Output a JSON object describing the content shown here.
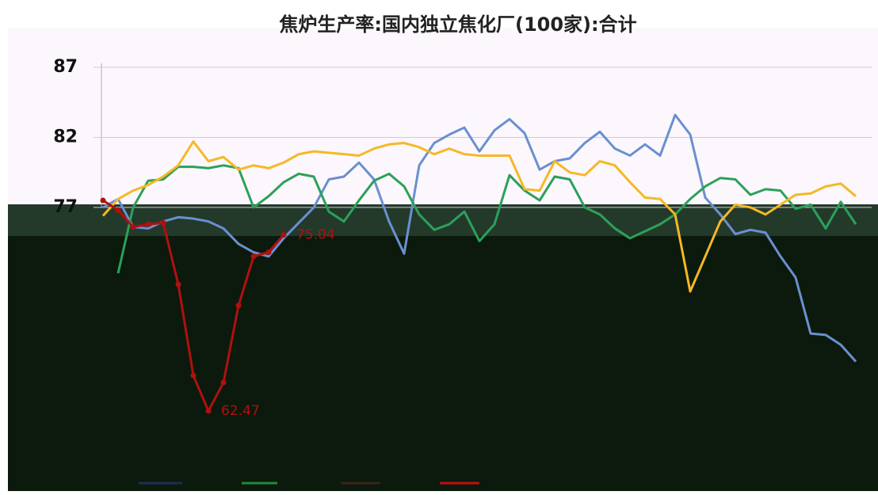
{
  "chart_data": {
    "type": "line",
    "title": "焦炉生产率:国内独立焦化厂(100家):合计",
    "ylim": [
      58,
      87
    ],
    "yticks": [
      87,
      82,
      77
    ],
    "grid": true,
    "series": [
      {
        "color": "#6b8fd0",
        "values": [
          77,
          77.6,
          75.6,
          75.5,
          76,
          76.3,
          76.2,
          76,
          75.5,
          74.4,
          73.8,
          73.5,
          74.8,
          75.9,
          77,
          79,
          79.2,
          80.2,
          79,
          76,
          73.7,
          80,
          81.6,
          82.2,
          82.7,
          81,
          82.5,
          83.3,
          82.3,
          79.7,
          80.3,
          80.5,
          81.6,
          82.4,
          81.2,
          80.7,
          81.5,
          80.7,
          83.6,
          82.2,
          77.7,
          76.5,
          75.1,
          75.4,
          75.2,
          73.5,
          72,
          68,
          67.9,
          67.2,
          66
        ]
      },
      {
        "color": "#2ca05a",
        "values": [
          null,
          72.3,
          77,
          78.9,
          79,
          79.9,
          79.9,
          79.8,
          80,
          79.8,
          77,
          77.8,
          78.8,
          79.4,
          79.2,
          76.7,
          76,
          77.5,
          78.9,
          79.4,
          78.5,
          76.5,
          75.4,
          75.8,
          76.7,
          74.6,
          75.8,
          79.3,
          78.2,
          77.5,
          79.2,
          79,
          77,
          76.5,
          75.5,
          74.8,
          75.3,
          75.8,
          76.5,
          77.6,
          78.5,
          79.1,
          79,
          77.9,
          78.3,
          78.2,
          76.9,
          77.2,
          75.5,
          77.4,
          75.8
        ]
      },
      {
        "color": "#f5b826",
        "values": [
          76.4,
          77.6,
          78.2,
          78.6,
          79.2,
          80,
          81.7,
          80.3,
          80.6,
          79.7,
          80,
          79.8,
          80.2,
          80.8,
          81,
          80.9,
          80.8,
          80.7,
          81.2,
          81.5,
          81.6,
          81.3,
          80.8,
          81.2,
          80.8,
          80.7,
          80.7,
          80.7,
          78.3,
          78.2,
          80.3,
          79.5,
          79.3,
          80.3,
          80,
          78.8,
          77.7,
          77.6,
          76.5,
          71,
          73.5,
          76,
          77.2,
          77,
          76.5,
          77.2,
          77.9,
          78,
          78.5,
          78.7,
          77.8
        ]
      },
      {
        "color": "#b01010",
        "markers": true,
        "values": [
          77.5,
          76.8,
          75.6,
          75.8,
          75.9,
          71.5,
          65,
          62.47,
          64.5,
          70,
          73.5,
          73.8,
          75.04,
          null,
          null,
          null,
          null,
          null,
          null,
          null,
          null,
          null,
          null,
          null,
          null,
          null,
          null,
          null,
          null,
          null,
          null,
          null,
          null,
          null,
          null,
          null,
          null,
          null,
          null,
          null,
          null,
          null,
          null,
          null,
          null,
          null,
          null,
          null,
          null,
          null,
          null
        ]
      }
    ],
    "data_labels": [
      {
        "series": 3,
        "index": 12
      },
      {
        "series": 3,
        "index": 7
      }
    ]
  }
}
